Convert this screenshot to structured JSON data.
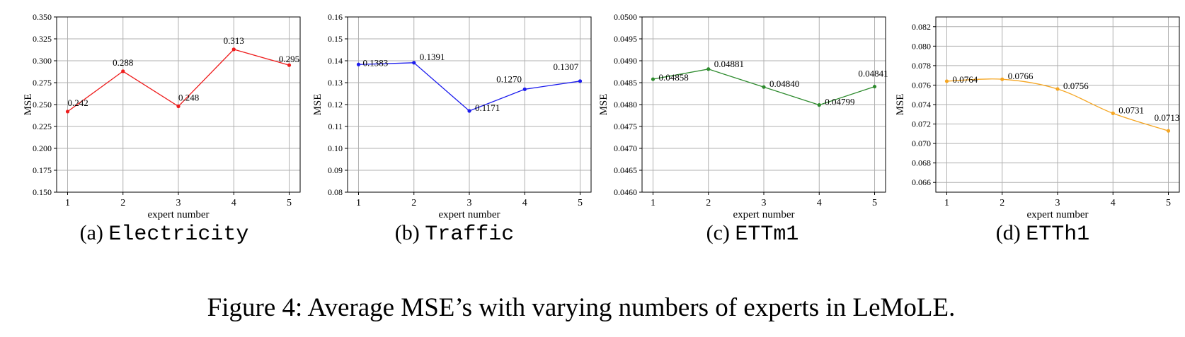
{
  "figure_caption": "Figure 4: Average MSE’s with varying numbers of experts in LeMoLE.",
  "chart_data": [
    {
      "type": "line",
      "caption_label": "(a)",
      "caption_name": "Electricity",
      "xlabel": "expert number",
      "ylabel": "MSE",
      "x": [
        1,
        2,
        3,
        4,
        5
      ],
      "ylim": [
        0.15,
        0.35
      ],
      "yticks": [
        "0.150",
        "0.175",
        "0.200",
        "0.225",
        "0.250",
        "0.275",
        "0.300",
        "0.325",
        "0.350"
      ],
      "series": [
        {
          "values": [
            0.242,
            0.288,
            0.248,
            0.313,
            0.295
          ],
          "labels": [
            "0.242",
            "0.288",
            "0.248",
            "0.313",
            "0.295"
          ],
          "color": "#ee1c1c"
        }
      ],
      "grid": true
    },
    {
      "type": "line",
      "caption_label": "(b)",
      "caption_name": "Traffic",
      "xlabel": "expert number",
      "ylabel": "MSE",
      "x": [
        1,
        2,
        3,
        4,
        5
      ],
      "ylim": [
        0.08,
        0.16
      ],
      "yticks": [
        "0.08",
        "0.09",
        "0.10",
        "0.11",
        "0.12",
        "0.13",
        "0.14",
        "0.15",
        "0.16"
      ],
      "series": [
        {
          "values": [
            0.1383,
            0.1391,
            0.1171,
            0.127,
            0.1307
          ],
          "labels": [
            "0.1383",
            "0.1391",
            "0.1171",
            "0.1270",
            "0.1307"
          ],
          "color": "#1c1cee"
        }
      ],
      "grid": true
    },
    {
      "type": "line",
      "caption_label": "(c)",
      "caption_name": "ETTm1",
      "xlabel": "expert number",
      "ylabel": "MSE",
      "x": [
        1,
        2,
        3,
        4,
        5
      ],
      "ylim": [
        0.046,
        0.05
      ],
      "yticks": [
        "0.0460",
        "0.0465",
        "0.0470",
        "0.0475",
        "0.0480",
        "0.0485",
        "0.0490",
        "0.0495",
        "0.0500"
      ],
      "series": [
        {
          "values": [
            0.04858,
            0.04881,
            0.0484,
            0.04799,
            0.04841
          ],
          "labels": [
            "0.04858",
            "0.04881",
            "0.04840",
            "0.04799",
            "0.04841"
          ],
          "color": "#2e8b2e"
        }
      ],
      "grid": true
    },
    {
      "type": "line",
      "caption_label": "(d)",
      "caption_name": "ETTh1",
      "xlabel": "expert number",
      "ylabel": "MSE",
      "x": [
        1,
        2,
        3,
        4,
        5
      ],
      "ylim": [
        0.065,
        0.083
      ],
      "yticks": [
        "0.066",
        "0.068",
        "0.070",
        "0.072",
        "0.074",
        "0.076",
        "0.078",
        "0.080",
        "0.082"
      ],
      "series": [
        {
          "values": [
            0.0764,
            0.0766,
            0.0756,
            0.0731,
            0.0713
          ],
          "labels": [
            "0.0764",
            "0.0766",
            "0.0756",
            "0.0731",
            "0.0713"
          ],
          "color": "#f5a623",
          "smooth": true
        }
      ],
      "grid": true
    }
  ]
}
